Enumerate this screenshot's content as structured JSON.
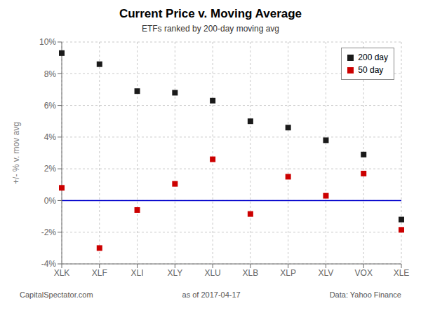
{
  "chart_data": {
    "type": "scatter",
    "title": "Current Price v. Moving Average",
    "subtitle": "ETFs ranked by 200-day moving avg",
    "y_label": "+/- % v. mov avg",
    "categories": [
      "XLK",
      "XLF",
      "XLI",
      "XLY",
      "XLU",
      "XLB",
      "XLP",
      "XLV",
      "VOX",
      "XLE"
    ],
    "series": [
      {
        "name": "200 day",
        "color": "#1a1a1a",
        "marker": "square",
        "values": [
          9.3,
          8.6,
          6.9,
          6.8,
          6.3,
          5.0,
          4.6,
          3.8,
          2.9,
          -1.2
        ]
      },
      {
        "name": "50 day",
        "color": "#cc0000",
        "marker": "square",
        "values": [
          0.8,
          -3.0,
          -0.6,
          1.05,
          2.6,
          -0.85,
          1.5,
          0.3,
          1.7,
          -1.85
        ]
      }
    ],
    "ylim": [
      -4,
      10
    ],
    "yticks": [
      {
        "value": -4,
        "label": "-4%"
      },
      {
        "value": -2,
        "label": "-2%"
      },
      {
        "value": 0,
        "label": "0%"
      },
      {
        "value": 2,
        "label": "2%"
      },
      {
        "value": 4,
        "label": "4%"
      },
      {
        "value": 6,
        "label": "6%"
      },
      {
        "value": 8,
        "label": "8%"
      },
      {
        "value": 10,
        "label": "10%"
      }
    ],
    "reference_lines": [
      {
        "value": 0,
        "color": "#0000cc"
      }
    ],
    "grid": true,
    "legend": "upper right",
    "annotations": [
      "CapitalSpectator.com",
      "as of  2017-04-17",
      "Data: Yahoo Finance"
    ]
  }
}
